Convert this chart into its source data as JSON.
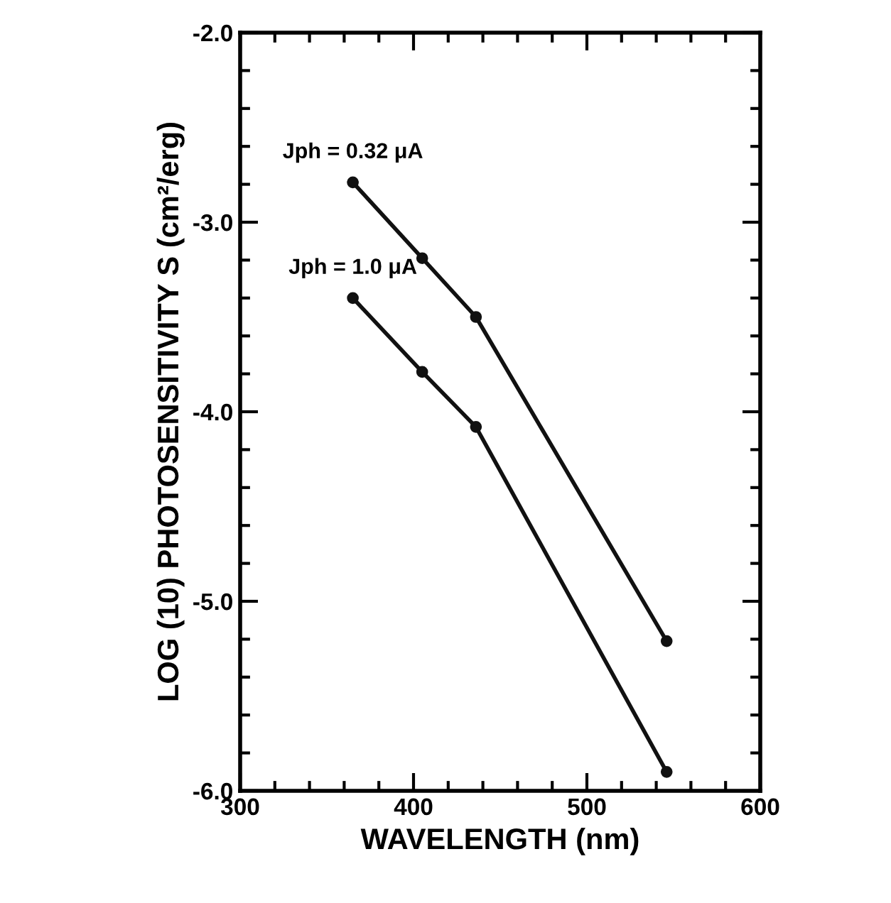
{
  "chart_data": {
    "type": "line",
    "xlabel": "WAVELENGTH (nm)",
    "ylabel": "LOG (10) PHOTOSENSITIVITY S (cm²/erg)",
    "x": [
      365,
      405,
      436,
      546
    ],
    "series": [
      {
        "name": "Jph = 0.32 μA",
        "color": "#111111",
        "values": [
          -2.79,
          -3.19,
          -3.5,
          -5.21
        ]
      },
      {
        "name": "Jph = 1.0 μA",
        "color": "#111111",
        "values": [
          -3.4,
          -3.79,
          -4.08,
          -5.9
        ]
      }
    ],
    "xlim": [
      300,
      600
    ],
    "ylim": [
      -6,
      -2
    ],
    "xticks": [
      300,
      {
        "value": 320,
        "label": null
      },
      {
        "value": 340,
        "label": null
      },
      {
        "value": 360,
        "label": null
      },
      {
        "value": 380,
        "label": null
      },
      400,
      {
        "value": 420,
        "label": null
      },
      {
        "value": 440,
        "label": null
      },
      {
        "value": 460,
        "label": null
      },
      {
        "value": 480,
        "label": null
      },
      500,
      {
        "value": 520,
        "label": null
      },
      {
        "value": 540,
        "label": null
      },
      {
        "value": 560,
        "label": null
      },
      {
        "value": 580,
        "label": null
      },
      600
    ],
    "yticks": [
      {
        "value": -6,
        "label": "-6.0"
      },
      {
        "value": -5.8,
        "label": null
      },
      {
        "value": -5.6,
        "label": null
      },
      {
        "value": -5.4,
        "label": null
      },
      {
        "value": -5.2,
        "label": null
      },
      {
        "value": -5,
        "label": "-5.0"
      },
      {
        "value": -4.8,
        "label": null
      },
      {
        "value": -4.6,
        "label": null
      },
      {
        "value": -4.4,
        "label": null
      },
      {
        "value": -4.2,
        "label": null
      },
      {
        "value": -4,
        "label": "-4.0"
      },
      {
        "value": -3.8,
        "label": null
      },
      {
        "value": -3.6,
        "label": null
      },
      {
        "value": -3.4,
        "label": null
      },
      {
        "value": -3.2,
        "label": null
      },
      {
        "value": -3,
        "label": "-3.0"
      },
      {
        "value": -2.8,
        "label": null
      },
      {
        "value": -2.6,
        "label": null
      },
      {
        "value": -2.4,
        "label": null
      },
      {
        "value": -2.2,
        "label": null
      },
      {
        "value": -2,
        "label": "-2.0"
      }
    ],
    "marker": "circle",
    "line_style": "solid",
    "grid": false,
    "legend": false
  }
}
